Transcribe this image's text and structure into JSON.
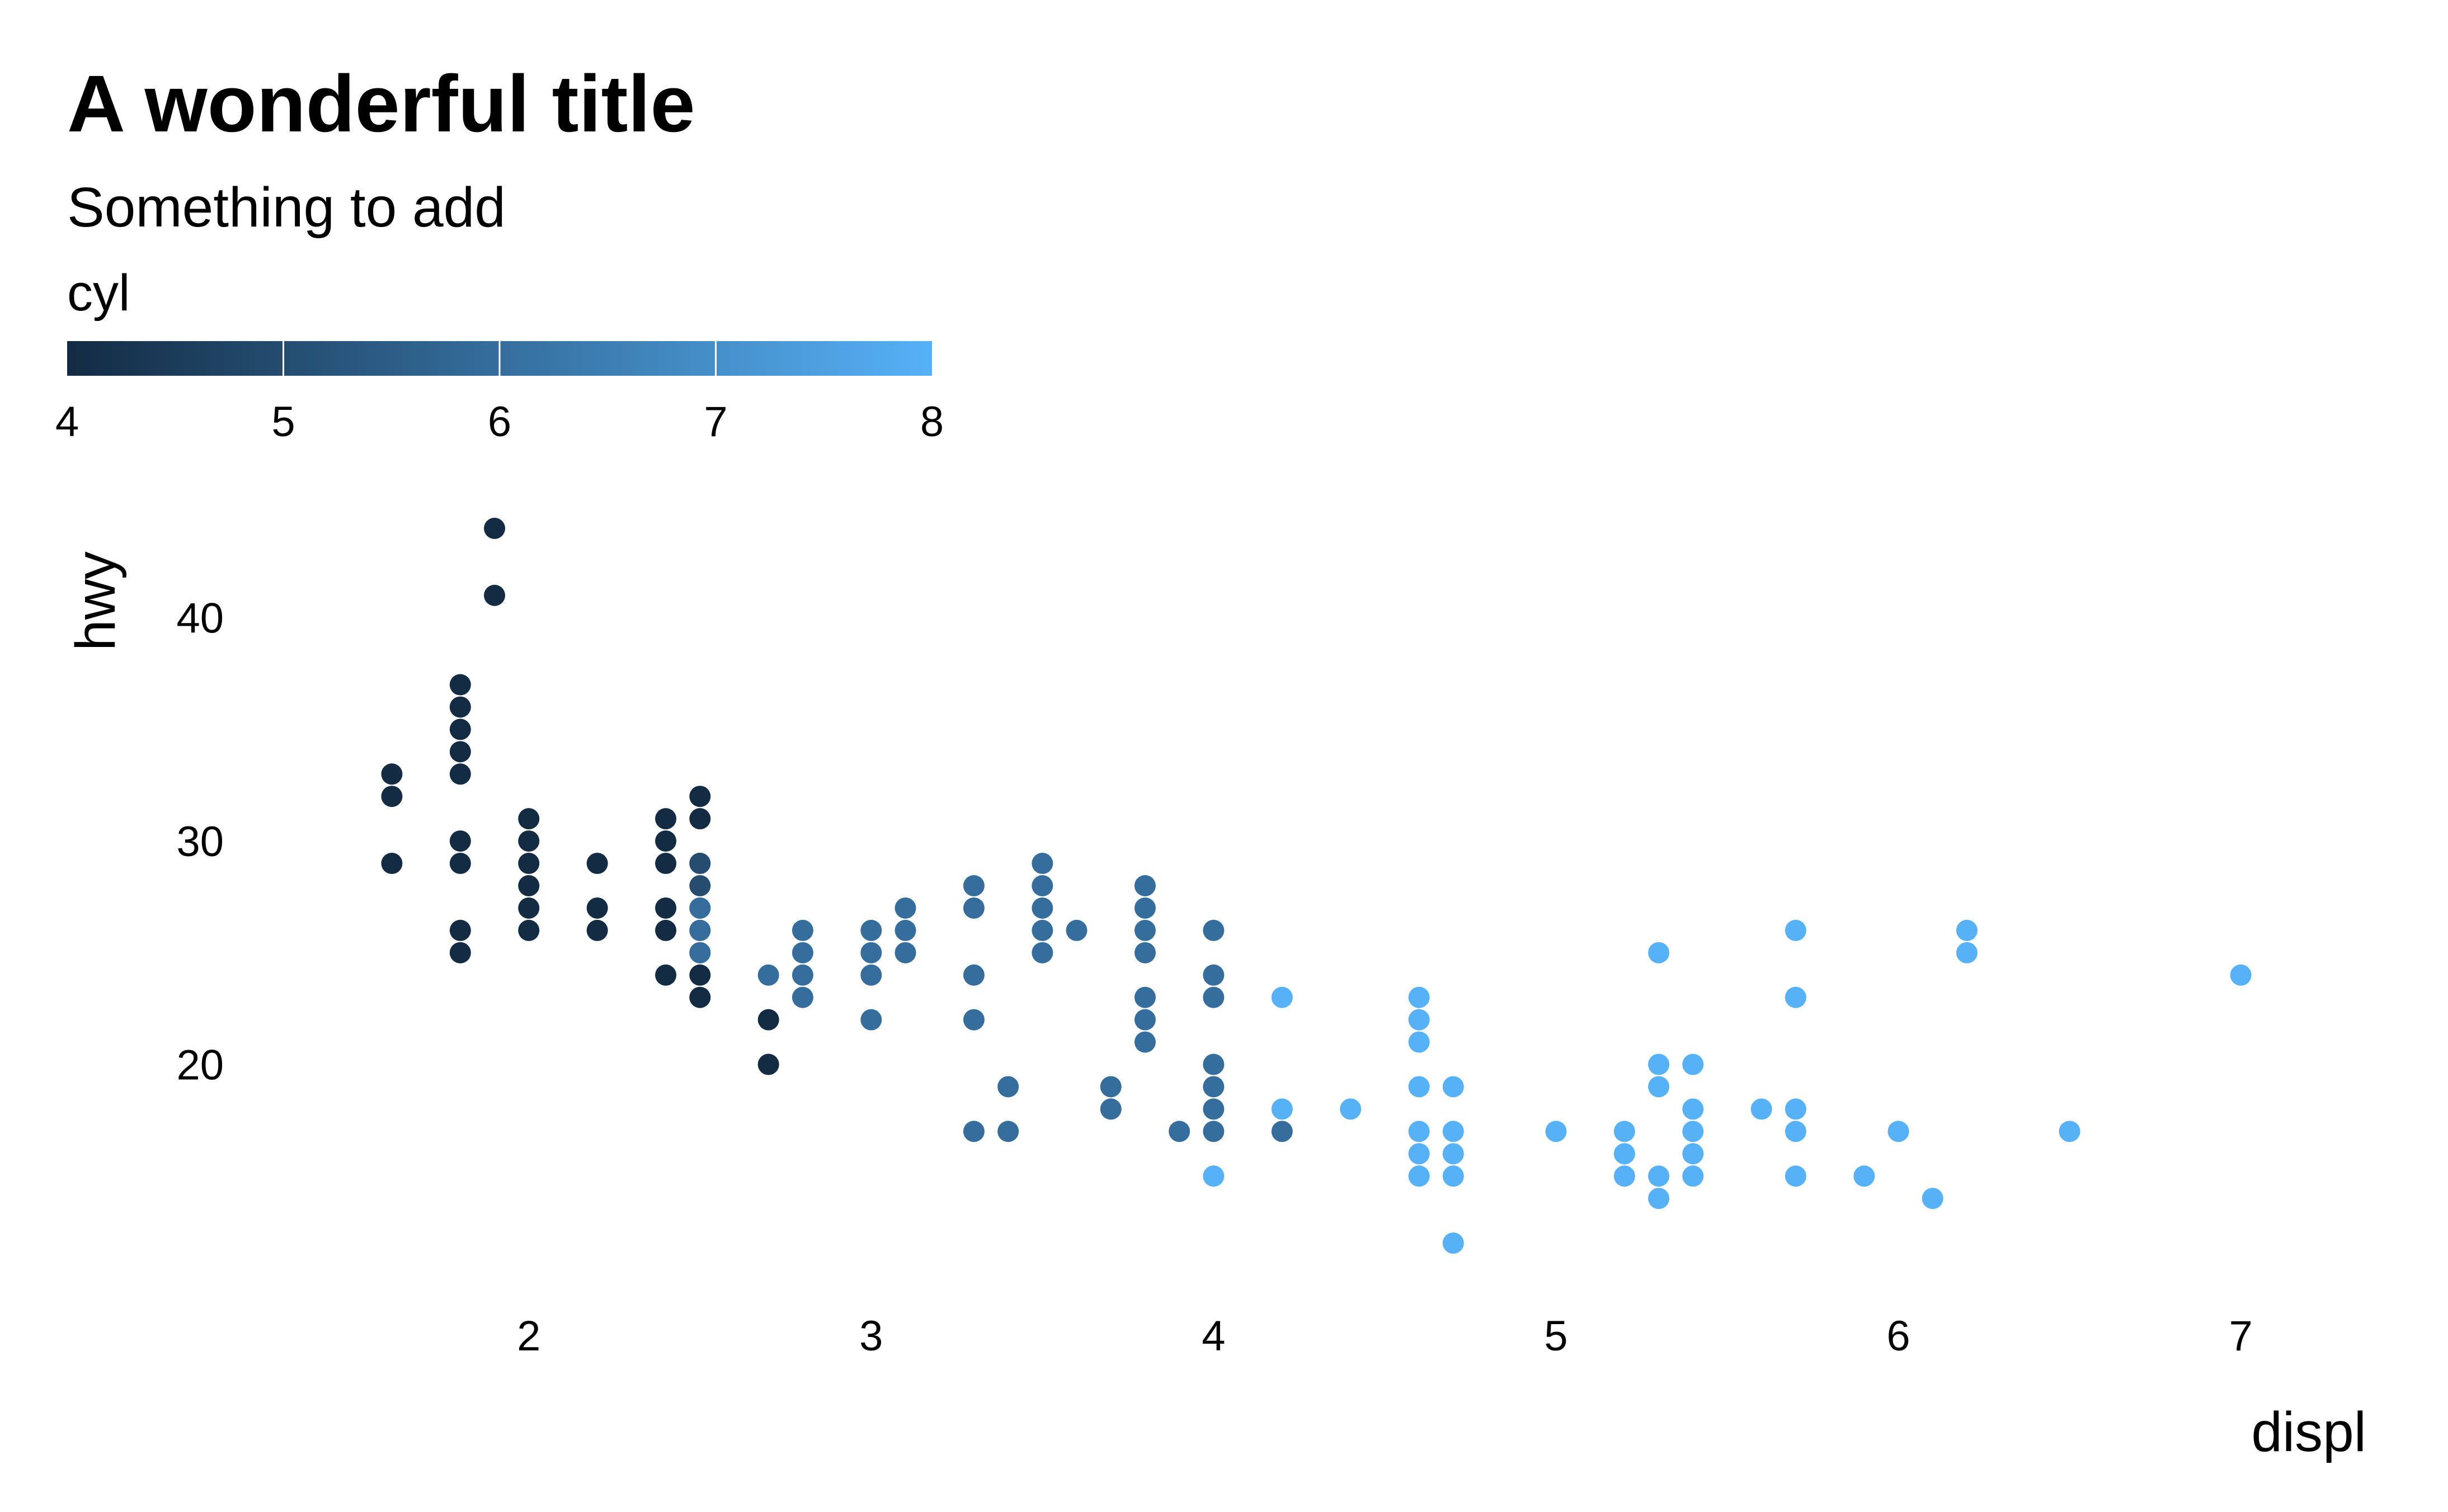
{
  "chart_data": {
    "type": "scatter",
    "title": "A wonderful title",
    "subtitle": "Something to add",
    "xlabel": "displ",
    "ylabel": "hwy",
    "xlim": [
      1.4,
      7.2
    ],
    "ylim": [
      10.5,
      45.5
    ],
    "x_ticks": [
      2,
      3,
      4,
      5,
      6,
      7
    ],
    "y_ticks": [
      20,
      30,
      40
    ],
    "grid": false,
    "legend": {
      "title": "cyl",
      "type": "colorbar",
      "position": "top",
      "ticks": [
        4,
        5,
        6,
        7,
        8
      ],
      "range": [
        4,
        8
      ],
      "color_low": "#132B43",
      "color_high": "#56B1F7"
    },
    "points": [
      {
        "x": 1.6,
        "y": 33,
        "cyl": 4
      },
      {
        "x": 1.6,
        "y": 32,
        "cyl": 4
      },
      {
        "x": 1.6,
        "y": 29,
        "cyl": 4
      },
      {
        "x": 1.8,
        "y": 37,
        "cyl": 4
      },
      {
        "x": 1.8,
        "y": 36,
        "cyl": 4
      },
      {
        "x": 1.8,
        "y": 35,
        "cyl": 4
      },
      {
        "x": 1.8,
        "y": 34,
        "cyl": 4
      },
      {
        "x": 1.8,
        "y": 33,
        "cyl": 4
      },
      {
        "x": 1.8,
        "y": 30,
        "cyl": 4
      },
      {
        "x": 1.8,
        "y": 29,
        "cyl": 4
      },
      {
        "x": 1.8,
        "y": 26,
        "cyl": 4
      },
      {
        "x": 1.8,
        "y": 25,
        "cyl": 4
      },
      {
        "x": 1.9,
        "y": 44,
        "cyl": 4
      },
      {
        "x": 1.9,
        "y": 41,
        "cyl": 4
      },
      {
        "x": 2.0,
        "y": 31,
        "cyl": 4
      },
      {
        "x": 2.0,
        "y": 30,
        "cyl": 4
      },
      {
        "x": 2.0,
        "y": 29,
        "cyl": 4
      },
      {
        "x": 2.0,
        "y": 28,
        "cyl": 4
      },
      {
        "x": 2.0,
        "y": 27,
        "cyl": 4
      },
      {
        "x": 2.0,
        "y": 26,
        "cyl": 4
      },
      {
        "x": 2.2,
        "y": 29,
        "cyl": 4
      },
      {
        "x": 2.2,
        "y": 27,
        "cyl": 4
      },
      {
        "x": 2.2,
        "y": 26,
        "cyl": 4
      },
      {
        "x": 2.4,
        "y": 31,
        "cyl": 4
      },
      {
        "x": 2.4,
        "y": 30,
        "cyl": 4
      },
      {
        "x": 2.4,
        "y": 29,
        "cyl": 4
      },
      {
        "x": 2.4,
        "y": 27,
        "cyl": 4
      },
      {
        "x": 2.4,
        "y": 26,
        "cyl": 4
      },
      {
        "x": 2.4,
        "y": 24,
        "cyl": 4
      },
      {
        "x": 2.5,
        "y": 32,
        "cyl": 4
      },
      {
        "x": 2.5,
        "y": 31,
        "cyl": 4
      },
      {
        "x": 2.5,
        "y": 29,
        "cyl": 4
      },
      {
        "x": 2.5,
        "y": 27,
        "cyl": 4
      },
      {
        "x": 2.5,
        "y": 26,
        "cyl": 4
      },
      {
        "x": 2.5,
        "y": 25,
        "cyl": 4
      },
      {
        "x": 2.5,
        "y": 24,
        "cyl": 4
      },
      {
        "x": 2.5,
        "y": 23,
        "cyl": 4
      },
      {
        "x": 2.5,
        "y": 29,
        "cyl": 5
      },
      {
        "x": 2.5,
        "y": 28,
        "cyl": 5
      },
      {
        "x": 2.5,
        "y": 27,
        "cyl": 6
      },
      {
        "x": 2.5,
        "y": 26,
        "cyl": 6
      },
      {
        "x": 2.5,
        "y": 25,
        "cyl": 6
      },
      {
        "x": 2.7,
        "y": 24,
        "cyl": 6
      },
      {
        "x": 2.7,
        "y": 22,
        "cyl": 4
      },
      {
        "x": 2.7,
        "y": 20,
        "cyl": 4
      },
      {
        "x": 2.8,
        "y": 26,
        "cyl": 6
      },
      {
        "x": 2.8,
        "y": 25,
        "cyl": 6
      },
      {
        "x": 2.8,
        "y": 24,
        "cyl": 6
      },
      {
        "x": 2.8,
        "y": 23,
        "cyl": 6
      },
      {
        "x": 3.0,
        "y": 26,
        "cyl": 6
      },
      {
        "x": 3.0,
        "y": 25,
        "cyl": 6
      },
      {
        "x": 3.0,
        "y": 24,
        "cyl": 6
      },
      {
        "x": 3.0,
        "y": 22,
        "cyl": 6
      },
      {
        "x": 3.1,
        "y": 27,
        "cyl": 6
      },
      {
        "x": 3.1,
        "y": 26,
        "cyl": 6
      },
      {
        "x": 3.1,
        "y": 25,
        "cyl": 6
      },
      {
        "x": 3.3,
        "y": 28,
        "cyl": 6
      },
      {
        "x": 3.3,
        "y": 27,
        "cyl": 6
      },
      {
        "x": 3.3,
        "y": 24,
        "cyl": 6
      },
      {
        "x": 3.3,
        "y": 22,
        "cyl": 6
      },
      {
        "x": 3.3,
        "y": 17,
        "cyl": 6
      },
      {
        "x": 3.4,
        "y": 19,
        "cyl": 6
      },
      {
        "x": 3.4,
        "y": 17,
        "cyl": 6
      },
      {
        "x": 3.5,
        "y": 29,
        "cyl": 6
      },
      {
        "x": 3.5,
        "y": 28,
        "cyl": 6
      },
      {
        "x": 3.5,
        "y": 27,
        "cyl": 6
      },
      {
        "x": 3.5,
        "y": 26,
        "cyl": 6
      },
      {
        "x": 3.5,
        "y": 25,
        "cyl": 6
      },
      {
        "x": 3.6,
        "y": 26,
        "cyl": 6
      },
      {
        "x": 3.7,
        "y": 19,
        "cyl": 6
      },
      {
        "x": 3.7,
        "y": 18,
        "cyl": 6
      },
      {
        "x": 3.8,
        "y": 28,
        "cyl": 6
      },
      {
        "x": 3.8,
        "y": 27,
        "cyl": 6
      },
      {
        "x": 3.8,
        "y": 26,
        "cyl": 6
      },
      {
        "x": 3.8,
        "y": 25,
        "cyl": 6
      },
      {
        "x": 3.8,
        "y": 23,
        "cyl": 6
      },
      {
        "x": 3.8,
        "y": 22,
        "cyl": 6
      },
      {
        "x": 3.8,
        "y": 21,
        "cyl": 6
      },
      {
        "x": 3.9,
        "y": 17,
        "cyl": 6
      },
      {
        "x": 4.0,
        "y": 26,
        "cyl": 6
      },
      {
        "x": 4.0,
        "y": 24,
        "cyl": 6
      },
      {
        "x": 4.0,
        "y": 23,
        "cyl": 6
      },
      {
        "x": 4.0,
        "y": 20,
        "cyl": 6
      },
      {
        "x": 4.0,
        "y": 19,
        "cyl": 6
      },
      {
        "x": 4.0,
        "y": 18,
        "cyl": 6
      },
      {
        "x": 4.0,
        "y": 17,
        "cyl": 6
      },
      {
        "x": 4.0,
        "y": 15,
        "cyl": 8
      },
      {
        "x": 4.2,
        "y": 23,
        "cyl": 8
      },
      {
        "x": 4.2,
        "y": 18,
        "cyl": 8
      },
      {
        "x": 4.2,
        "y": 17,
        "cyl": 6
      },
      {
        "x": 4.4,
        "y": 18,
        "cyl": 8
      },
      {
        "x": 4.6,
        "y": 23,
        "cyl": 8
      },
      {
        "x": 4.6,
        "y": 22,
        "cyl": 8
      },
      {
        "x": 4.6,
        "y": 21,
        "cyl": 8
      },
      {
        "x": 4.6,
        "y": 19,
        "cyl": 8
      },
      {
        "x": 4.6,
        "y": 17,
        "cyl": 8
      },
      {
        "x": 4.6,
        "y": 16,
        "cyl": 8
      },
      {
        "x": 4.6,
        "y": 15,
        "cyl": 8
      },
      {
        "x": 4.7,
        "y": 19,
        "cyl": 8
      },
      {
        "x": 4.7,
        "y": 17,
        "cyl": 8
      },
      {
        "x": 4.7,
        "y": 16,
        "cyl": 8
      },
      {
        "x": 4.7,
        "y": 15,
        "cyl": 8
      },
      {
        "x": 4.7,
        "y": 12,
        "cyl": 8
      },
      {
        "x": 5.0,
        "y": 17,
        "cyl": 8
      },
      {
        "x": 5.2,
        "y": 17,
        "cyl": 8
      },
      {
        "x": 5.2,
        "y": 16,
        "cyl": 8
      },
      {
        "x": 5.2,
        "y": 15,
        "cyl": 8
      },
      {
        "x": 5.3,
        "y": 25,
        "cyl": 8
      },
      {
        "x": 5.3,
        "y": 20,
        "cyl": 8
      },
      {
        "x": 5.3,
        "y": 19,
        "cyl": 8
      },
      {
        "x": 5.3,
        "y": 15,
        "cyl": 8
      },
      {
        "x": 5.3,
        "y": 14,
        "cyl": 8
      },
      {
        "x": 5.4,
        "y": 20,
        "cyl": 8
      },
      {
        "x": 5.4,
        "y": 18,
        "cyl": 8
      },
      {
        "x": 5.4,
        "y": 17,
        "cyl": 8
      },
      {
        "x": 5.4,
        "y": 16,
        "cyl": 8
      },
      {
        "x": 5.4,
        "y": 15,
        "cyl": 8
      },
      {
        "x": 5.6,
        "y": 18,
        "cyl": 8
      },
      {
        "x": 5.7,
        "y": 26,
        "cyl": 8
      },
      {
        "x": 5.7,
        "y": 23,
        "cyl": 8
      },
      {
        "x": 5.7,
        "y": 18,
        "cyl": 8
      },
      {
        "x": 5.7,
        "y": 17,
        "cyl": 8
      },
      {
        "x": 5.7,
        "y": 15,
        "cyl": 8
      },
      {
        "x": 5.9,
        "y": 15,
        "cyl": 8
      },
      {
        "x": 6.0,
        "y": 17,
        "cyl": 8
      },
      {
        "x": 6.1,
        "y": 14,
        "cyl": 8
      },
      {
        "x": 6.2,
        "y": 26,
        "cyl": 8
      },
      {
        "x": 6.2,
        "y": 25,
        "cyl": 8
      },
      {
        "x": 6.5,
        "y": 17,
        "cyl": 8
      },
      {
        "x": 7.0,
        "y": 24,
        "cyl": 8
      }
    ]
  }
}
